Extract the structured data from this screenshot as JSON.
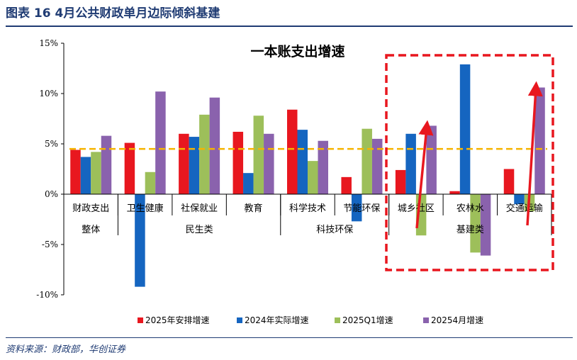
{
  "header": {
    "title": "图表 16   4月公共财政单月边际倾斜基建"
  },
  "source": "资料来源：财政部，华创证券",
  "chart_data": {
    "type": "bar",
    "title": "一本账支出增速",
    "categories": [
      "财政支出",
      "卫生健康",
      "社保就业",
      "教育",
      "科学技术",
      "节能环保",
      "城乡社区",
      "农林水",
      "交通运输"
    ],
    "groups": [
      {
        "label": "整体",
        "span": [
          0,
          0
        ]
      },
      {
        "label": "民生类",
        "span": [
          1,
          3
        ]
      },
      {
        "label": "科技环保",
        "span": [
          4,
          5
        ]
      },
      {
        "label": "基建类",
        "span": [
          6,
          8
        ]
      }
    ],
    "series": [
      {
        "name": "2025年安排增速",
        "color": "#e8171f",
        "values": [
          4.4,
          5.1,
          6.0,
          6.2,
          8.4,
          1.7,
          2.4,
          0.3,
          2.5
        ]
      },
      {
        "name": "2024年实际增速",
        "color": "#1565c0",
        "values": [
          3.7,
          -9.2,
          5.7,
          2.1,
          6.4,
          -2.7,
          6.0,
          12.9,
          -1.0
        ]
      },
      {
        "name": "2025Q1增速",
        "color": "#9dbf5a",
        "values": [
          4.2,
          2.2,
          7.9,
          7.8,
          3.3,
          6.5,
          -4.1,
          -5.8,
          -1.7
        ]
      },
      {
        "name": "20254月增速",
        "color": "#8a62ad",
        "values": [
          5.8,
          10.2,
          9.6,
          6.0,
          5.3,
          5.5,
          6.8,
          -6.1,
          10.6
        ]
      }
    ],
    "reference_line": {
      "value": 4.5,
      "color": "#f5b400"
    },
    "ylim": [
      -10,
      15
    ],
    "yticks": [
      -10,
      -5,
      0,
      5,
      10,
      15
    ],
    "ytick_labels": [
      "-10%",
      "-5%",
      "0%",
      "5%",
      "10%",
      "15%"
    ],
    "highlight_box_color": "#e8171f",
    "arrow_color": "#e8171f",
    "legend_position": "bottom"
  }
}
